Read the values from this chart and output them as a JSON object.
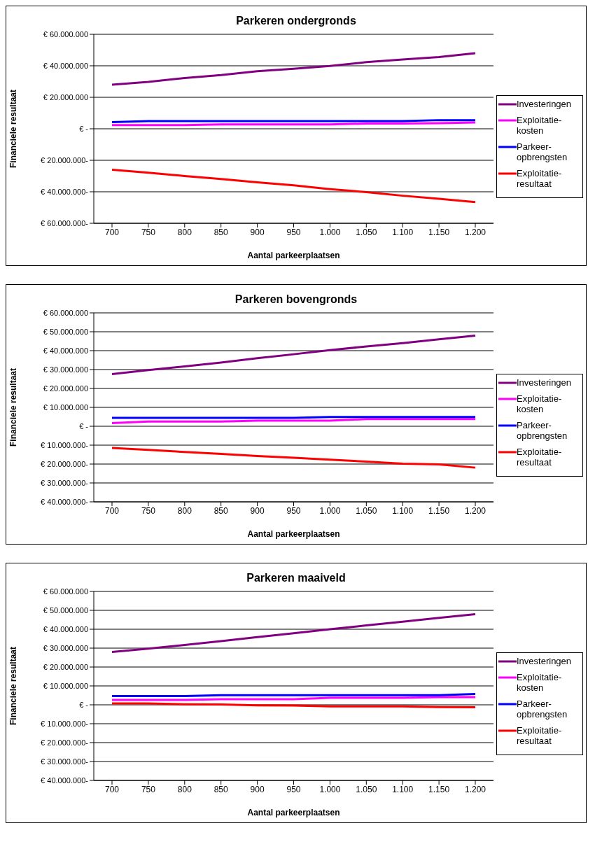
{
  "chart_data": [
    {
      "type": "line",
      "title": "Parkeren ondergronds",
      "xlabel": "Aantal parkeerplaatsen",
      "ylabel": "Financiele resultaat",
      "categories": [
        "700",
        "750",
        "800",
        "850",
        "900",
        "950",
        "1.000",
        "1.050",
        "1.100",
        "1.150",
        "1.200"
      ],
      "series": [
        {
          "name": "Investeringen",
          "color": "#800080",
          "values": [
            28000000,
            29800000,
            32200000,
            34100000,
            36600000,
            38100000,
            39900000,
            42300000,
            44000000,
            45600000,
            48000000
          ]
        },
        {
          "name": "Exploitatie-kosten",
          "color": "#ff00ff",
          "values": [
            2300000,
            2300000,
            2300000,
            2800000,
            2800000,
            2800000,
            2800000,
            3300000,
            3300000,
            3600000,
            4000000
          ]
        },
        {
          "name": "Parkeer-opbrengsten",
          "color": "#0000ff",
          "values": [
            4200000,
            4900000,
            4900000,
            4900000,
            4900000,
            4900000,
            4900000,
            4900000,
            4900000,
            5500000,
            5500000
          ]
        },
        {
          "name": "Exploitatie-resultaat",
          "color": "#ff0000",
          "values": [
            -26000000,
            -27900000,
            -30000000,
            -31900000,
            -34000000,
            -35900000,
            -38300000,
            -40200000,
            -42500000,
            -44400000,
            -46600000
          ]
        }
      ],
      "ylim": [
        -60000000,
        60000000
      ],
      "yticks": [
        {
          "value": -60000000,
          "label": "€ 60.000.000-"
        },
        {
          "value": -40000000,
          "label": "€ 40.000.000-"
        },
        {
          "value": -20000000,
          "label": "€ 20.000.000-"
        },
        {
          "value": 0,
          "label": "€ -"
        },
        {
          "value": 20000000,
          "label": "€ 20.000.000"
        },
        {
          "value": 40000000,
          "label": "€ 40.000.000"
        },
        {
          "value": 60000000,
          "label": "€ 60.000.000"
        }
      ],
      "grid": "y",
      "legend": "right",
      "marker": "none",
      "line_style": "solid"
    },
    {
      "type": "line",
      "title": "Parkeren bovengronds",
      "xlabel": "Aantal parkeerplaatsen",
      "ylabel": "Financiele resultaat",
      "categories": [
        "700",
        "750",
        "800",
        "850",
        "900",
        "950",
        "1.000",
        "1.050",
        "1.100",
        "1.150",
        "1.200"
      ],
      "series": [
        {
          "name": "Investeringen",
          "color": "#800080",
          "values": [
            27600000,
            29700000,
            31700000,
            33700000,
            36000000,
            38100000,
            40300000,
            42200000,
            44000000,
            46000000,
            48000000
          ]
        },
        {
          "name": "Exploitatie-kosten",
          "color": "#ff00ff",
          "values": [
            1700000,
            2500000,
            2500000,
            2500000,
            3000000,
            3000000,
            3000000,
            3800000,
            3800000,
            3800000,
            3800000
          ]
        },
        {
          "name": "Parkeer-opbrengsten",
          "color": "#0000ff",
          "values": [
            4400000,
            4400000,
            4400000,
            4400000,
            4400000,
            4400000,
            4900000,
            4900000,
            4900000,
            4900000,
            4900000
          ]
        },
        {
          "name": "Exploitatie-resultaat",
          "color": "#ff0000",
          "values": [
            -11500000,
            -12500000,
            -13600000,
            -14600000,
            -15700000,
            -16700000,
            -17700000,
            -18700000,
            -19800000,
            -20200000,
            -21900000
          ]
        }
      ],
      "ylim": [
        -40000000,
        60000000
      ],
      "yticks": [
        {
          "value": -40000000,
          "label": "€ 40.000.000-"
        },
        {
          "value": -30000000,
          "label": "€ 30.000.000-"
        },
        {
          "value": -20000000,
          "label": "€ 20.000.000-"
        },
        {
          "value": -10000000,
          "label": "€ 10.000.000-"
        },
        {
          "value": 0,
          "label": "€ -"
        },
        {
          "value": 10000000,
          "label": "€ 10.000.000"
        },
        {
          "value": 20000000,
          "label": "€ 20.000.000"
        },
        {
          "value": 30000000,
          "label": "€ 30.000.000"
        },
        {
          "value": 40000000,
          "label": "€ 40.000.000"
        },
        {
          "value": 50000000,
          "label": "€ 50.000.000"
        },
        {
          "value": 60000000,
          "label": "€ 60.000.000"
        }
      ],
      "grid": "y",
      "legend": "right",
      "marker": "none",
      "line_style": "solid"
    },
    {
      "type": "line",
      "title": "Parkeren maaiveld",
      "xlabel": "Aantal parkeerplaatsen",
      "ylabel": "Financiele resultaat",
      "categories": [
        "700",
        "750",
        "800",
        "850",
        "900",
        "950",
        "1.000",
        "1.050",
        "1.100",
        "1.150",
        "1.200"
      ],
      "series": [
        {
          "name": "Investeringen",
          "color": "#800080",
          "values": [
            28000000,
            29700000,
            31700000,
            33700000,
            35800000,
            37900000,
            40000000,
            42000000,
            44000000,
            46000000,
            48000000
          ]
        },
        {
          "name": "Exploitatie-kosten",
          "color": "#ff00ff",
          "values": [
            2600000,
            2600000,
            2600000,
            3000000,
            3000000,
            3000000,
            3700000,
            3700000,
            3700000,
            4100000,
            4100000
          ]
        },
        {
          "name": "Parkeer-opbrengsten",
          "color": "#0000ff",
          "values": [
            4600000,
            4600000,
            4600000,
            5100000,
            5100000,
            5100000,
            5100000,
            5100000,
            5100000,
            5100000,
            5700000
          ]
        },
        {
          "name": "Exploitatie-resultaat",
          "color": "#ff0000",
          "values": [
            700000,
            700000,
            300000,
            200000,
            -300000,
            -400000,
            -800000,
            -800000,
            -800000,
            -1200000,
            -1300000
          ]
        }
      ],
      "ylim": [
        -40000000,
        60000000
      ],
      "yticks": [
        {
          "value": -40000000,
          "label": "€ 40.000.000-"
        },
        {
          "value": -30000000,
          "label": "€ 30.000.000-"
        },
        {
          "value": -20000000,
          "label": "€ 20.000.000-"
        },
        {
          "value": -10000000,
          "label": "€ 10.000.000-"
        },
        {
          "value": 0,
          "label": "€ -"
        },
        {
          "value": 10000000,
          "label": "€ 10.000.000"
        },
        {
          "value": 20000000,
          "label": "€ 20.000.000"
        },
        {
          "value": 30000000,
          "label": "€ 30.000.000"
        },
        {
          "value": 40000000,
          "label": "€ 40.000.000"
        },
        {
          "value": 50000000,
          "label": "€ 50.000.000"
        },
        {
          "value": 60000000,
          "label": "€ 60.000.000"
        }
      ],
      "grid": "y",
      "legend": "right",
      "marker": "none",
      "line_style": "solid"
    }
  ]
}
